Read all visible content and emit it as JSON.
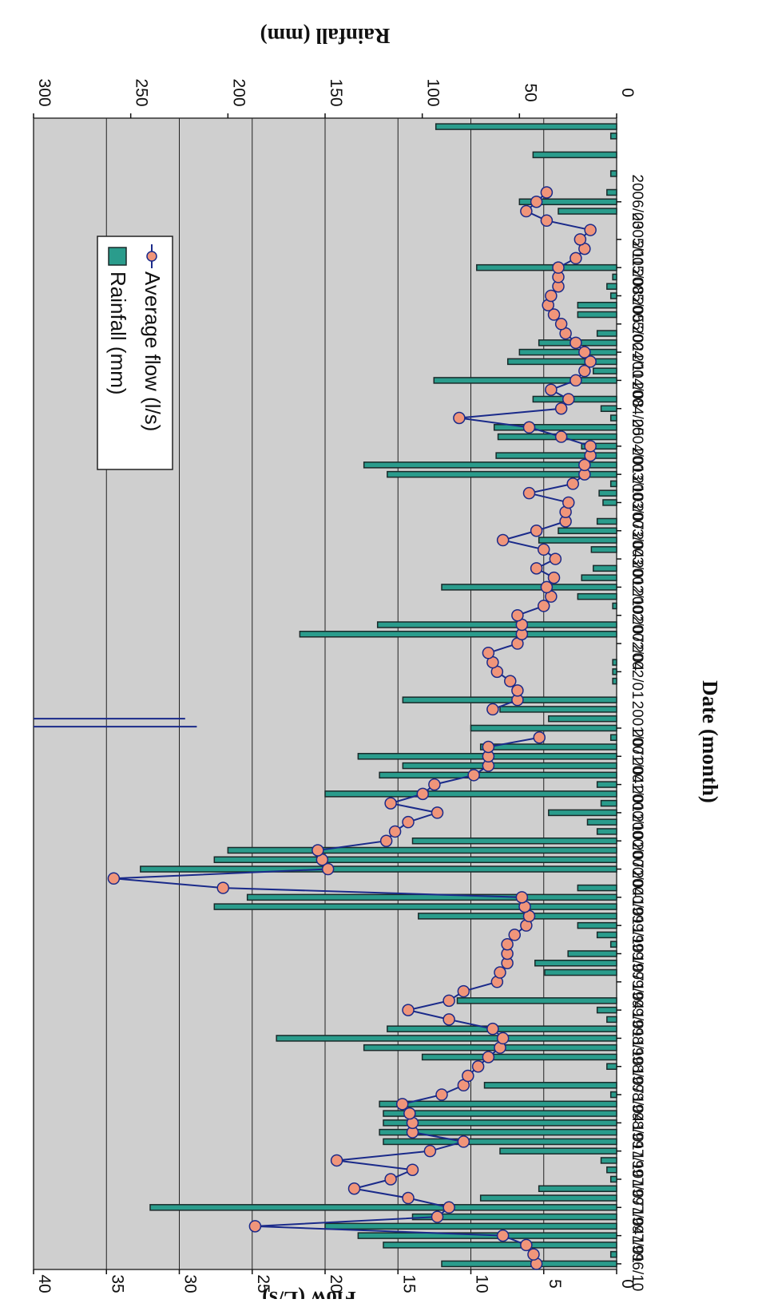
{
  "chart_data": {
    "type": "bar+line",
    "orientation": "rotated 90 degrees clockwise (date axis runs top-to-bottom)",
    "xlabel": "Date (month)",
    "ylabel_left": "Flow (L/s)",
    "ylabel_right": "Rainfall (mm)",
    "flow_axis": {
      "min": 0,
      "max": 40,
      "ticks": [
        0,
        5,
        10,
        15,
        20,
        25,
        30,
        35,
        40
      ]
    },
    "rain_axis": {
      "min": 0,
      "max": 300,
      "ticks": [
        0,
        50,
        100,
        150,
        200,
        250,
        300
      ]
    },
    "date_ticks": [
      "1996/10",
      "1997/01",
      "1997/04",
      "1997/07",
      "1997/10",
      "1998/01",
      "1998/04",
      "1998/07",
      "1998/10",
      "1999/01",
      "1999/04",
      "1999/07",
      "1999/10",
      "2000/01",
      "2000/04",
      "2000/07",
      "2000/10",
      "2001/01",
      "2001/04",
      "2001/07",
      "2002/01",
      "2002/04",
      "2002/07",
      "2002/10",
      "2003/01",
      "2003/04",
      "2003/07",
      "2003/10",
      "2004/01",
      "2004/05",
      "2004/08",
      "2004/11",
      "2005/02",
      "2005/05",
      "2005/08",
      "2005/11",
      "2006/03"
    ],
    "grid": "horizontal flow gridlines",
    "legend": {
      "placement": "top-right",
      "entries": [
        "Rainfall (mm)",
        "Average flow (l/s)"
      ]
    },
    "series": [
      {
        "name": "Rainfall (mm)",
        "kind": "bar",
        "color": "#2a9c8c",
        "values": [
          90,
          3,
          120,
          133,
          150,
          105,
          240,
          70,
          40,
          3,
          5,
          8,
          60,
          120,
          122,
          120,
          120,
          122,
          3,
          68,
          0,
          5,
          100,
          130,
          175,
          118,
          5,
          10,
          82,
          0,
          0,
          37,
          42,
          25,
          3,
          10,
          20,
          102,
          207,
          190,
          20,
          0,
          245,
          207,
          200,
          105,
          10,
          15,
          35,
          8,
          150,
          10,
          122,
          110,
          133,
          70,
          3,
          75,
          35,
          60,
          110,
          0,
          2,
          2,
          2,
          0,
          0,
          163,
          123,
          0,
          2,
          20,
          90,
          18,
          12,
          0,
          13,
          40,
          30,
          10,
          0,
          7,
          9,
          3,
          118,
          130,
          62,
          18,
          61,
          63,
          3,
          8,
          43,
          0,
          94,
          12,
          56,
          50,
          40,
          10,
          0,
          20,
          20,
          3,
          5,
          2,
          72,
          0,
          0,
          0,
          0,
          0,
          30,
          50,
          5,
          0,
          3,
          0,
          43,
          0,
          3,
          93
        ],
        "note": "one bar per month starting 1996/10"
      },
      {
        "name": "Average flow (l/s)",
        "kind": "line",
        "color": "#1a2a8a",
        "marker_color": "#f0957a",
        "values": [
          5.5,
          5.7,
          6.2,
          7.8,
          24.8,
          12.3,
          11.5,
          14.3,
          18.0,
          15.5,
          14.0,
          19.2,
          12.8,
          10.5,
          14.0,
          14.0,
          14.2,
          14.7,
          12.0,
          10.5,
          10.2,
          9.5,
          8.8,
          8.0,
          7.8,
          8.5,
          11.5,
          14.3,
          11.5,
          10.5,
          8.2,
          8.0,
          7.5,
          7.5,
          7.5,
          7.0,
          6.2,
          6.0,
          6.3,
          6.5,
          27.0,
          34.5,
          19.8,
          20.2,
          20.5,
          15.8,
          15.2,
          14.3,
          12.3,
          15.5,
          13.3,
          12.5,
          9.8,
          8.8,
          8.8,
          8.8,
          5.3,
          null,
          null,
          8.5,
          6.8,
          6.8,
          7.3,
          8.2,
          8.5,
          8.8,
          6.8,
          6.5,
          6.5,
          6.8,
          5.0,
          4.5,
          4.8,
          4.3,
          5.5,
          4.2,
          5.0,
          7.8,
          5.5,
          3.5,
          3.5,
          3.3,
          6.0,
          3.0,
          2.2,
          2.2,
          1.8,
          1.8,
          3.8,
          6.0,
          10.8,
          3.8,
          3.3,
          4.5,
          2.8,
          2.2,
          1.8,
          2.2,
          2.8,
          3.5,
          3.8,
          4.3,
          4.7,
          4.5,
          4.0,
          4.0,
          4.0,
          2.8,
          2.2,
          2.5,
          1.8,
          4.8,
          6.2,
          5.5,
          4.8
        ]
      }
    ]
  }
}
